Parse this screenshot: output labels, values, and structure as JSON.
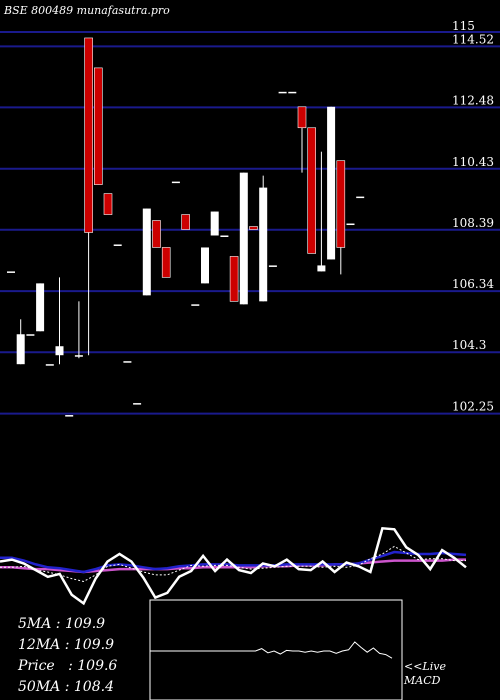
{
  "title": "BSE 800489 munafasutra.pro",
  "stats": [
    {
      "label": "5MA",
      "value": "109.9"
    },
    {
      "label": "12MA",
      "value": "109.9"
    },
    {
      "label": "Price",
      "value": "109.6"
    },
    {
      "label": "50MA",
      "value": "108.4"
    }
  ],
  "live_label": "<<Live",
  "macd_label": "MACD",
  "colors": {
    "background": "#000000",
    "gridline": "#1a1a8c",
    "up_candle": "#ffffff",
    "down_candle": "#cc0000",
    "line_price": "#ffffff",
    "line_short_ma": "#ffffff",
    "line_mid_ma": "#2222cc",
    "line_long_ma": "#cc55cc"
  },
  "chart_data": {
    "type": "candlestick",
    "ylim": [
      101.2,
      115.4
    ],
    "yticks": [
      "115",
      "114.52",
      "112.48",
      "110.43",
      "108.39",
      "106.34",
      "104.3",
      "102.25"
    ],
    "grid": true,
    "candles": [
      {
        "o": 107.0,
        "h": 107.0,
        "l": 107.0,
        "c": 107.0
      },
      {
        "o": 103.9,
        "h": 105.4,
        "l": 103.9,
        "c": 104.9
      },
      {
        "o": 104.9,
        "h": 104.9,
        "l": 104.9,
        "c": 104.9
      },
      {
        "o": 105.0,
        "h": 106.6,
        "l": 105.0,
        "c": 106.6
      },
      {
        "o": 103.9,
        "h": 103.9,
        "l": 103.9,
        "c": 103.9
      },
      {
        "o": 104.2,
        "h": 106.8,
        "l": 103.9,
        "c": 104.5
      },
      {
        "o": 102.2,
        "h": 102.2,
        "l": 102.2,
        "c": 102.2
      },
      {
        "o": 104.2,
        "h": 106.0,
        "l": 104.1,
        "c": 104.2
      },
      {
        "o": 114.8,
        "h": 114.8,
        "l": 104.2,
        "c": 108.3
      },
      {
        "o": 113.8,
        "h": 113.8,
        "l": 109.9,
        "c": 109.9
      },
      {
        "o": 109.6,
        "h": 109.6,
        "l": 108.9,
        "c": 108.9
      },
      {
        "o": 107.9,
        "h": 107.9,
        "l": 107.9,
        "c": 107.9
      },
      {
        "o": 104.0,
        "h": 104.0,
        "l": 104.0,
        "c": 104.0
      },
      {
        "o": 102.6,
        "h": 102.6,
        "l": 102.6,
        "c": 102.6
      },
      {
        "o": 106.2,
        "h": 109.1,
        "l": 106.2,
        "c": 109.1
      },
      {
        "o": 108.7,
        "h": 108.7,
        "l": 107.8,
        "c": 107.8
      },
      {
        "o": 107.8,
        "h": 107.8,
        "l": 106.8,
        "c": 106.8
      },
      {
        "o": 110.0,
        "h": 110.0,
        "l": 110.0,
        "c": 110.0
      },
      {
        "o": 108.9,
        "h": 108.9,
        "l": 108.4,
        "c": 108.4
      },
      {
        "o": 105.9,
        "h": 105.9,
        "l": 105.9,
        "c": 105.9
      },
      {
        "o": 106.6,
        "h": 107.8,
        "l": 106.6,
        "c": 107.8
      },
      {
        "o": 108.2,
        "h": 109.0,
        "l": 108.2,
        "c": 109.0
      },
      {
        "o": 108.2,
        "h": 108.2,
        "l": 108.2,
        "c": 108.2
      },
      {
        "o": 107.5,
        "h": 107.5,
        "l": 106.0,
        "c": 106.0
      },
      {
        "o": 105.9,
        "h": 110.3,
        "l": 105.9,
        "c": 110.3
      },
      {
        "o": 108.5,
        "h": 108.5,
        "l": 108.4,
        "c": 108.4
      },
      {
        "o": 106.0,
        "h": 110.2,
        "l": 106.0,
        "c": 109.8
      },
      {
        "o": 107.2,
        "h": 107.2,
        "l": 107.2,
        "c": 107.2
      },
      {
        "o": 113.0,
        "h": 113.0,
        "l": 113.0,
        "c": 113.0
      },
      {
        "o": 113.0,
        "h": 113.0,
        "l": 113.0,
        "c": 113.0
      },
      {
        "o": 112.5,
        "h": 112.5,
        "l": 110.3,
        "c": 111.8
      },
      {
        "o": 111.8,
        "h": 111.8,
        "l": 107.6,
        "c": 107.6
      },
      {
        "o": 107.0,
        "h": 111.0,
        "l": 107.0,
        "c": 107.2
      },
      {
        "o": 107.4,
        "h": 112.5,
        "l": 107.4,
        "c": 112.5
      },
      {
        "o": 110.7,
        "h": 110.7,
        "l": 106.9,
        "c": 107.8
      },
      {
        "o": 108.6,
        "h": 108.6,
        "l": 108.6,
        "c": 108.6
      },
      {
        "o": 109.5,
        "h": 109.5,
        "l": 109.5,
        "c": 109.5
      }
    ],
    "macd": {
      "price_line": [
        0.11,
        0.13,
        0.09,
        0.02,
        -0.05,
        -0.02,
        -0.24,
        -0.33,
        -0.07,
        0.11,
        0.19,
        0.11,
        -0.06,
        -0.27,
        -0.22,
        -0.05,
        0.01,
        0.17,
        0.01,
        0.13,
        0.02,
        -0.01,
        0.09,
        0.06,
        0.13,
        0.03,
        0.02,
        0.11,
        0.0,
        0.1,
        0.06,
        0.0,
        0.46,
        0.45,
        0.26,
        0.18,
        0.03,
        0.23,
        0.15,
        0.05
      ],
      "short_ma": [
        0.05,
        0.05,
        0.06,
        0.02,
        0.0,
        -0.03,
        -0.07,
        -0.1,
        -0.03,
        0.06,
        0.08,
        0.04,
        0.0,
        -0.03,
        -0.03,
        0.02,
        0.07,
        0.06,
        0.07,
        0.07,
        0.05,
        0.03,
        0.04,
        0.05,
        0.06,
        0.06,
        0.06,
        0.05,
        0.06,
        0.05,
        0.07,
        0.14,
        0.19,
        0.27,
        0.2,
        0.13,
        0.14,
        0.14,
        0.12,
        0.12
      ],
      "mid_ma": [
        0.15,
        0.15,
        0.12,
        0.08,
        0.05,
        0.04,
        0.02,
        0.0,
        0.03,
        0.07,
        0.08,
        0.07,
        0.05,
        0.03,
        0.04,
        0.06,
        0.07,
        0.08,
        0.08,
        0.08,
        0.07,
        0.07,
        0.07,
        0.07,
        0.08,
        0.08,
        0.08,
        0.08,
        0.08,
        0.08,
        0.09,
        0.13,
        0.17,
        0.21,
        0.2,
        0.19,
        0.19,
        0.2,
        0.19,
        0.18
      ],
      "long_ma": [
        0.05,
        0.05,
        0.04,
        0.03,
        0.03,
        0.02,
        0.01,
        0.0,
        0.01,
        0.02,
        0.03,
        0.03,
        0.03,
        0.03,
        0.03,
        0.04,
        0.04,
        0.05,
        0.05,
        0.05,
        0.05,
        0.05,
        0.06,
        0.06,
        0.06,
        0.07,
        0.07,
        0.07,
        0.08,
        0.08,
        0.09,
        0.1,
        0.11,
        0.12,
        0.12,
        0.12,
        0.12,
        0.12,
        0.13,
        0.13
      ],
      "histogram": [
        0.0,
        0.0,
        0.0,
        0.0,
        0.0,
        0.0,
        0.0,
        0.0,
        0.0,
        0.0,
        0.0,
        0.0,
        0.0,
        0.0,
        0.0,
        0.0,
        0.0,
        0.0,
        0.04,
        -0.03,
        0.0,
        -0.05,
        0.01,
        0.0,
        0.0,
        -0.02,
        0.0,
        -0.02,
        0.0,
        0.0,
        -0.04,
        0.0,
        0.02,
        0.15,
        0.06,
        -0.02,
        0.05,
        -0.04,
        -0.06,
        -0.12
      ]
    }
  }
}
